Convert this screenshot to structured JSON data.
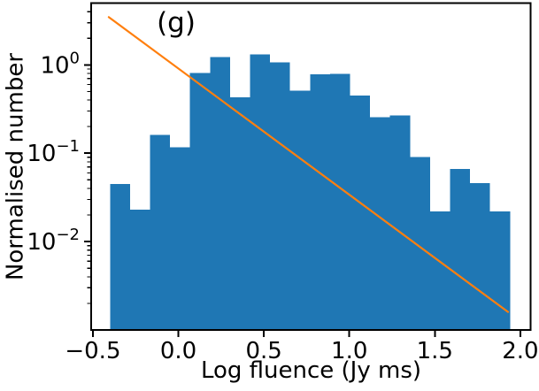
{
  "chart_data": {
    "type": "bar",
    "subtype": "histogram-log-y-with-power-law-fit-line",
    "title": "",
    "annotation": "(g)",
    "xlabel": "Log fluence (Jy ms)",
    "ylabel": "Normalised number",
    "xlim": [
      -0.51,
      2.06
    ],
    "ylim": [
      0.001,
      5.0
    ],
    "yscale": "log",
    "grid": false,
    "legend_position": "none",
    "bin_start": -0.4,
    "bin_width": 0.117,
    "values": [
      0.045,
      0.023,
      0.162,
      0.117,
      0.81,
      1.23,
      0.43,
      1.32,
      1.07,
      0.51,
      0.78,
      0.79,
      0.45,
      0.257,
      0.269,
      0.091,
      0.022,
      0.066,
      0.046,
      0.022
    ],
    "fit_line": {
      "x1": -0.407,
      "y1": 3.47,
      "x2": 1.928,
      "y2": 0.0016
    },
    "xticks": [
      {
        "value": -0.5,
        "label": "−0.5"
      },
      {
        "value": 0.0,
        "label": "0.0"
      },
      {
        "value": 0.5,
        "label": "0.5"
      },
      {
        "value": 1.0,
        "label": "1.0"
      },
      {
        "value": 1.5,
        "label": "1.5"
      },
      {
        "value": 2.0,
        "label": "2.0"
      }
    ],
    "yticks": [
      {
        "value": 1,
        "base": "10",
        "exp": "0"
      },
      {
        "value": 0.1,
        "base": "10",
        "exp": "−1"
      },
      {
        "value": 0.01,
        "base": "10",
        "exp": "−2"
      }
    ],
    "colors": {
      "bar": "#1f77b4",
      "line": "#ff7f0e",
      "text": "#000000",
      "spine": "#000000"
    }
  }
}
